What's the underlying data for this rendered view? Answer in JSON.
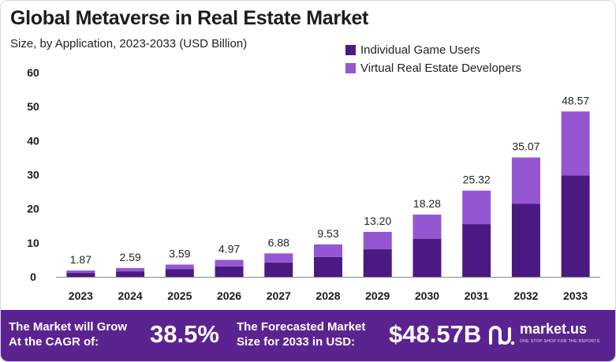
{
  "header": {
    "title": "Global Metaverse in Real Estate Market",
    "subtitle": "Size, by Application, 2023-2033 (USD Billion)"
  },
  "chart_data": {
    "type": "bar",
    "stacked": true,
    "categories": [
      "2023",
      "2024",
      "2025",
      "2026",
      "2027",
      "2028",
      "2029",
      "2030",
      "2031",
      "2032",
      "2033"
    ],
    "series": [
      {
        "name": "Individual Game Users",
        "color": "#4a1a82",
        "values": [
          1.15,
          1.6,
          2.2,
          3.05,
          4.2,
          5.85,
          8.1,
          11.2,
          15.5,
          21.5,
          29.8
        ]
      },
      {
        "name": "Virtual Real Estate Developers",
        "color": "#9457d1",
        "values": [
          0.72,
          0.99,
          1.39,
          1.92,
          2.68,
          3.68,
          5.1,
          7.08,
          9.82,
          13.57,
          18.77
        ]
      }
    ],
    "totals": [
      "1.87",
      "2.59",
      "3.59",
      "4.97",
      "6.88",
      "9.53",
      "13.20",
      "18.28",
      "25.32",
      "35.07",
      "48.57"
    ],
    "y_ticks": [
      "0",
      "10",
      "20",
      "30",
      "40",
      "50",
      "60"
    ],
    "ylim": [
      0,
      60
    ],
    "legend_position": "top-right",
    "grid": false
  },
  "footer": {
    "cagr_label_line1": "The Market will Grow",
    "cagr_label_line2": "At the CAGR of:",
    "cagr_value": "38.5%",
    "forecast_label_line1": "The Forecasted Market",
    "forecast_label_line2": "Size for 2033 in USD:",
    "forecast_value": "$48.57B",
    "brand_name": "market.us",
    "brand_tagline": "ONE STOP SHOP FOR THE REPORTS",
    "brand_icon": "market-us-logo-icon"
  },
  "colors": {
    "footer_bg": "#5b2390",
    "series_dark": "#4a1a82",
    "series_light": "#9457d1",
    "axis": "#888888"
  }
}
